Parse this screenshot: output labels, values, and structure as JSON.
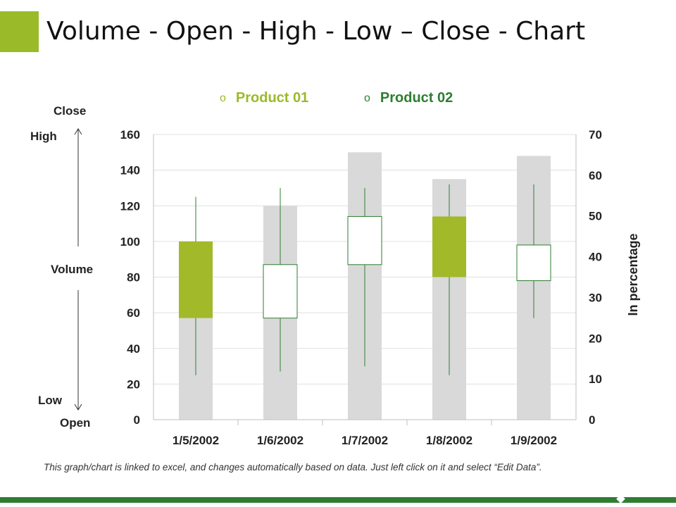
{
  "slide": {
    "title": "Volume - Open - High - Low – Close - Chart",
    "note": "This graph/chart is linked to excel, and changes automatically based on data. Just left click on it and select “Edit Data”."
  },
  "side_labels": {
    "close": "Close",
    "high": "High",
    "volume": "Volume",
    "low": "Low",
    "open": "Open"
  },
  "colors": {
    "product_01": "#9aba2a",
    "product_02": "#2e7d32",
    "volume_bar": "#d9d9d9",
    "gridline": "#e0e0e0",
    "wick": "#2e7d32",
    "candle_down": "#a2b92a",
    "candle_up": "#ffffff",
    "candle_border": "#2e7d32"
  },
  "chart_data": {
    "type": "candlestick-volume",
    "categories": [
      "1/5/2002",
      "1/6/2002",
      "1/7/2002",
      "1/8/2002",
      "1/9/2002"
    ],
    "legend": [
      {
        "name": "Product 01",
        "marker": "o",
        "color": "#9aba2a"
      },
      {
        "name": "Product 02",
        "marker": "o",
        "color": "#2e7d32"
      }
    ],
    "volume": [
      57,
      120,
      150,
      135,
      148
    ],
    "open": [
      100,
      57,
      87,
      114,
      78
    ],
    "high": [
      125,
      130,
      130,
      132,
      132
    ],
    "low": [
      25,
      27,
      30,
      25,
      57
    ],
    "close": [
      57,
      87,
      114,
      80,
      98
    ],
    "ylim_left": [
      0,
      160
    ],
    "yticks_left": [
      0,
      20,
      40,
      60,
      80,
      100,
      120,
      140,
      160
    ],
    "ylim_right": [
      0,
      70
    ],
    "yticks_right": [
      0,
      10,
      20,
      30,
      40,
      50,
      60,
      70
    ],
    "ylabel_right": "In percentage",
    "grid": true
  }
}
